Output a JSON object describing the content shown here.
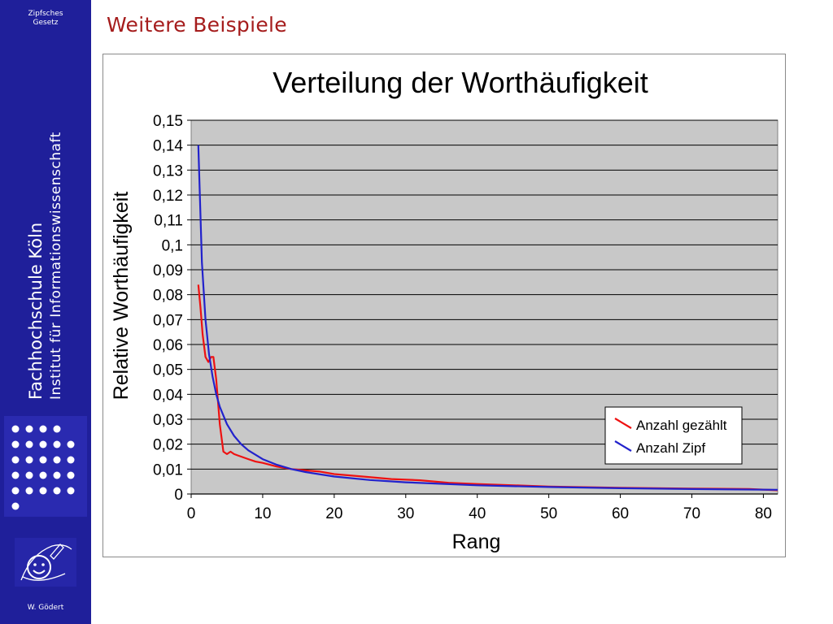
{
  "sidebar": {
    "topic_line1": "Zipfsches",
    "topic_line2": "Gesetz",
    "institution": "Fachhochschule Köln",
    "department": "Institut für Informationswissenschaft",
    "author": "W. Gödert",
    "color": "#1f1f9a"
  },
  "slide": {
    "title": "Weitere Beispiele",
    "title_color": "#a51c1c"
  },
  "chart_data": {
    "type": "line",
    "title": "Verteilung der Worthäufigkeit",
    "xlabel": "Rang",
    "ylabel": "Relative Worthäufigkeit",
    "xlim": [
      0,
      82
    ],
    "ylim": [
      0,
      0.15
    ],
    "x_ticks": [
      "0",
      "10",
      "20",
      "30",
      "40",
      "50",
      "60",
      "70",
      "80"
    ],
    "y_ticks": [
      "0",
      "0,01",
      "0,02",
      "0,03",
      "0,04",
      "0,05",
      "0,06",
      "0,07",
      "0,08",
      "0,09",
      "0,1",
      "0,11",
      "0,12",
      "0,13",
      "0,14",
      "0,15"
    ],
    "grid": true,
    "legend_position": "bottom-right",
    "plot_background": "#c8c8c8",
    "series": [
      {
        "name": "Anzahl gezählt",
        "color": "#ee1111",
        "x": [
          1,
          1.3,
          1.6,
          2,
          2.4,
          2.8,
          3.1,
          3.5,
          4,
          4.5,
          5,
          5.5,
          6,
          6.5,
          7,
          8,
          9,
          10,
          12,
          14,
          16,
          18,
          20,
          24,
          28,
          32,
          36,
          40,
          50,
          60,
          70,
          78,
          82
        ],
        "values": [
          0.084,
          0.075,
          0.064,
          0.055,
          0.053,
          0.055,
          0.055,
          0.046,
          0.028,
          0.017,
          0.016,
          0.017,
          0.016,
          0.0155,
          0.015,
          0.014,
          0.013,
          0.0125,
          0.011,
          0.01,
          0.0095,
          0.009,
          0.008,
          0.007,
          0.006,
          0.0055,
          0.0045,
          0.004,
          0.003,
          0.0025,
          0.0022,
          0.002,
          0.0015
        ]
      },
      {
        "name": "Anzahl Zipf",
        "color": "#2222cc",
        "x": [
          1,
          1.5,
          2,
          2.5,
          3,
          3.5,
          4,
          5,
          6,
          7,
          8,
          10,
          12,
          14,
          16,
          20,
          25,
          30,
          40,
          50,
          60,
          70,
          82
        ],
        "values": [
          0.14,
          0.093,
          0.07,
          0.056,
          0.047,
          0.04,
          0.035,
          0.028,
          0.0233,
          0.02,
          0.0175,
          0.014,
          0.0117,
          0.01,
          0.0088,
          0.007,
          0.0056,
          0.0047,
          0.0035,
          0.0028,
          0.0023,
          0.002,
          0.0017
        ]
      }
    ]
  }
}
